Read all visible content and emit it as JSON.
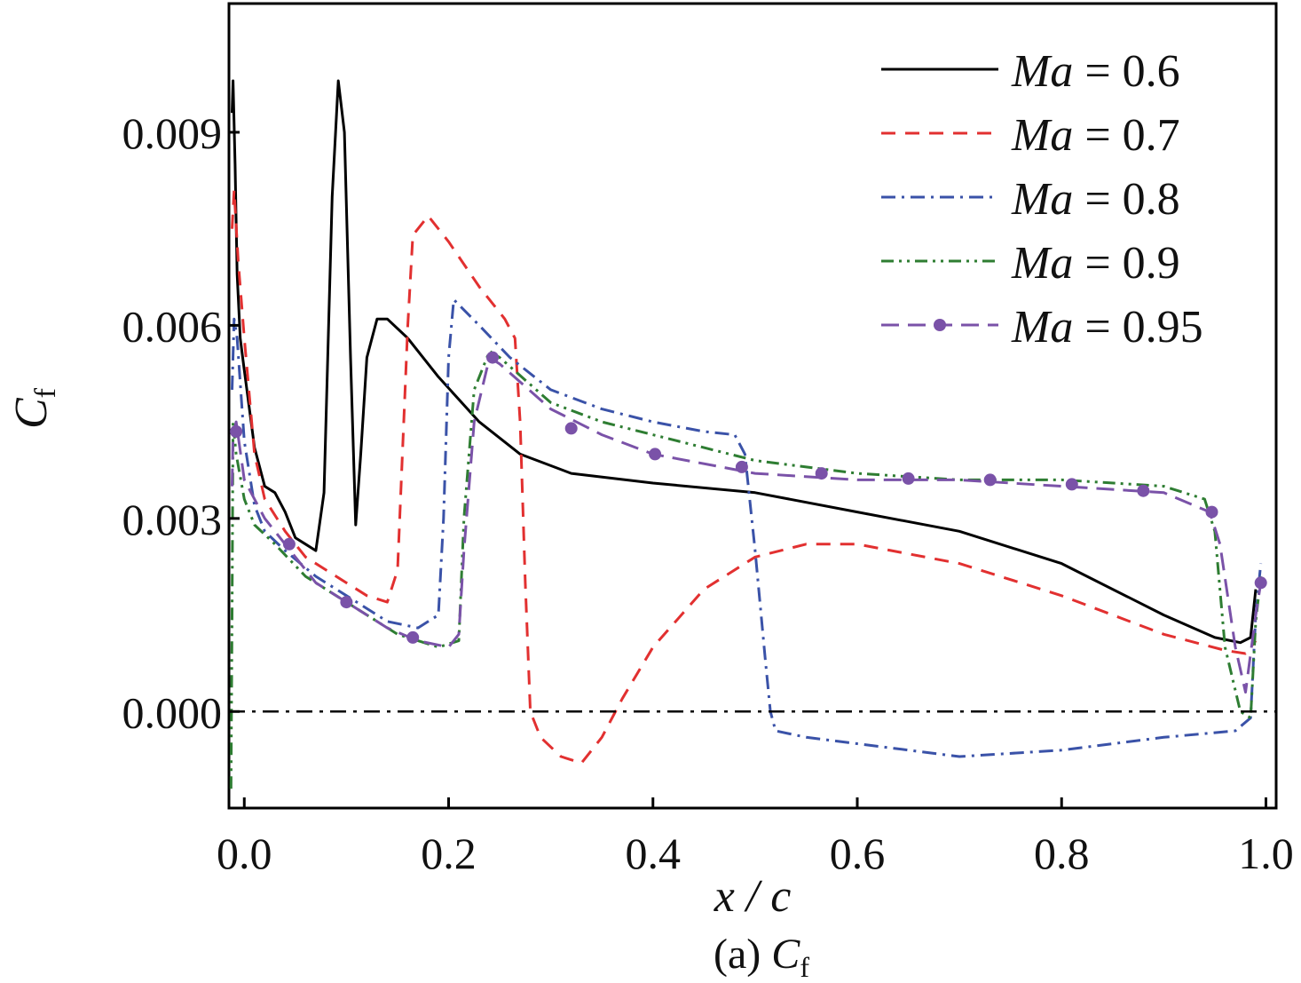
{
  "chart_data": {
    "type": "line",
    "caption": {
      "prefix": "(a) ",
      "symbol": "C",
      "sub": "f"
    },
    "xlabel": "x / c",
    "ylabel": {
      "symbol": "C",
      "sub": "f"
    },
    "xlim": [
      -0.015,
      1.01
    ],
    "ylim": [
      -0.0015,
      0.011
    ],
    "x_ticks": [
      0.0,
      0.2,
      0.4,
      0.6,
      0.8,
      1.0
    ],
    "x_tick_labels": [
      "0.0",
      "0.2",
      "0.4",
      "0.6",
      "0.8",
      "1.0"
    ],
    "y_ticks": [
      0.0,
      0.003,
      0.006,
      0.009
    ],
    "y_tick_labels": [
      "0.000",
      "0.003",
      "0.006",
      "0.009"
    ],
    "grid": false,
    "legend_position": "top-right",
    "reference_line": {
      "y": 0.0,
      "style": "dash-dot",
      "color": "#000000"
    },
    "series": [
      {
        "name": "0.6",
        "label_prefix": "Ma",
        "label_eq": " = ",
        "color": "#000000",
        "style": "solid",
        "marker": false,
        "points": [
          [
            -0.012,
            0.0093
          ],
          [
            -0.011,
            0.0098
          ],
          [
            -0.009,
            0.0085
          ],
          [
            -0.007,
            0.0068
          ],
          [
            -0.004,
            0.0058
          ],
          [
            0.0,
            0.0053
          ],
          [
            0.01,
            0.0041
          ],
          [
            0.02,
            0.0035
          ],
          [
            0.03,
            0.0034
          ],
          [
            0.04,
            0.0031
          ],
          [
            0.05,
            0.0027
          ],
          [
            0.06,
            0.0026
          ],
          [
            0.07,
            0.0025
          ],
          [
            0.078,
            0.0034
          ],
          [
            0.086,
            0.008
          ],
          [
            0.092,
            0.0098
          ],
          [
            0.098,
            0.009
          ],
          [
            0.104,
            0.0055
          ],
          [
            0.109,
            0.0029
          ],
          [
            0.114,
            0.004
          ],
          [
            0.12,
            0.0055
          ],
          [
            0.13,
            0.0061
          ],
          [
            0.14,
            0.0061
          ],
          [
            0.16,
            0.0058
          ],
          [
            0.19,
            0.0052
          ],
          [
            0.23,
            0.0045
          ],
          [
            0.27,
            0.004
          ],
          [
            0.32,
            0.0037
          ],
          [
            0.4,
            0.00355
          ],
          [
            0.5,
            0.0034
          ],
          [
            0.6,
            0.0031
          ],
          [
            0.7,
            0.0028
          ],
          [
            0.8,
            0.0023
          ],
          [
            0.9,
            0.0015
          ],
          [
            0.95,
            0.00115
          ],
          [
            0.975,
            0.00107
          ],
          [
            0.985,
            0.00115
          ],
          [
            0.99,
            0.0019
          ]
        ]
      },
      {
        "name": "0.7",
        "label_prefix": "Ma",
        "label_eq": " = ",
        "color": "#e23030",
        "style": "dashed",
        "marker": false,
        "points": [
          [
            -0.012,
            0.0075
          ],
          [
            -0.01,
            0.0081
          ],
          [
            -0.006,
            0.007
          ],
          [
            0.0,
            0.0058
          ],
          [
            0.01,
            0.004
          ],
          [
            0.02,
            0.0033
          ],
          [
            0.04,
            0.0028
          ],
          [
            0.06,
            0.0024
          ],
          [
            0.09,
            0.0021
          ],
          [
            0.12,
            0.0018
          ],
          [
            0.14,
            0.0017
          ],
          [
            0.15,
            0.0022
          ],
          [
            0.16,
            0.006
          ],
          [
            0.165,
            0.0074
          ],
          [
            0.18,
            0.0077
          ],
          [
            0.2,
            0.0073
          ],
          [
            0.23,
            0.0066
          ],
          [
            0.255,
            0.0061
          ],
          [
            0.265,
            0.0058
          ],
          [
            0.27,
            0.0045
          ],
          [
            0.275,
            0.002
          ],
          [
            0.28,
            0.0
          ],
          [
            0.29,
            -0.0004
          ],
          [
            0.31,
            -0.0007
          ],
          [
            0.33,
            -0.0008
          ],
          [
            0.35,
            -0.0004
          ],
          [
            0.37,
            0.0002
          ],
          [
            0.4,
            0.001
          ],
          [
            0.45,
            0.0019
          ],
          [
            0.5,
            0.0024
          ],
          [
            0.55,
            0.0026
          ],
          [
            0.6,
            0.0026
          ],
          [
            0.7,
            0.0023
          ],
          [
            0.8,
            0.0018
          ],
          [
            0.9,
            0.0012
          ],
          [
            0.96,
            0.00095
          ],
          [
            0.98,
            0.0009
          ],
          [
            0.99,
            0.0011
          ]
        ]
      },
      {
        "name": "0.8",
        "label_prefix": "Ma",
        "label_eq": " = ",
        "color": "#3a52a8",
        "style": "dashdot",
        "marker": false,
        "points": [
          [
            -0.012,
            0.005
          ],
          [
            -0.01,
            0.0061
          ],
          [
            -0.007,
            0.0058
          ],
          [
            0.0,
            0.0042
          ],
          [
            0.01,
            0.0032
          ],
          [
            0.02,
            0.0028
          ],
          [
            0.04,
            0.0025
          ],
          [
            0.07,
            0.0021
          ],
          [
            0.1,
            0.0018
          ],
          [
            0.14,
            0.0014
          ],
          [
            0.17,
            0.0013
          ],
          [
            0.19,
            0.0015
          ],
          [
            0.195,
            0.003
          ],
          [
            0.2,
            0.0055
          ],
          [
            0.205,
            0.0064
          ],
          [
            0.23,
            0.006
          ],
          [
            0.26,
            0.0055
          ],
          [
            0.3,
            0.005
          ],
          [
            0.35,
            0.0047
          ],
          [
            0.4,
            0.0045
          ],
          [
            0.45,
            0.00435
          ],
          [
            0.48,
            0.0043
          ],
          [
            0.49,
            0.004
          ],
          [
            0.5,
            0.0025
          ],
          [
            0.51,
            0.0008
          ],
          [
            0.515,
            0.0
          ],
          [
            0.52,
            -0.0003
          ],
          [
            0.55,
            -0.0004
          ],
          [
            0.6,
            -0.0005
          ],
          [
            0.7,
            -0.0007
          ],
          [
            0.8,
            -0.0006
          ],
          [
            0.9,
            -0.0004
          ],
          [
            0.97,
            -0.0003
          ],
          [
            0.985,
            -0.0001
          ],
          [
            0.99,
            0.0015
          ],
          [
            0.995,
            0.0023
          ]
        ]
      },
      {
        "name": "0.9",
        "label_prefix": "Ma",
        "label_eq": " = ",
        "color": "#2e7d32",
        "style": "dashdotdot",
        "marker": false,
        "points": [
          [
            -0.013,
            -0.0012
          ],
          [
            -0.012,
            0.0015
          ],
          [
            -0.011,
            0.0045
          ],
          [
            -0.008,
            0.004
          ],
          [
            0.0,
            0.0033
          ],
          [
            0.01,
            0.0029
          ],
          [
            0.03,
            0.0026
          ],
          [
            0.06,
            0.0021
          ],
          [
            0.1,
            0.0017
          ],
          [
            0.15,
            0.0012
          ],
          [
            0.19,
            0.001
          ],
          [
            0.21,
            0.0011
          ],
          [
            0.215,
            0.003
          ],
          [
            0.225,
            0.005
          ],
          [
            0.24,
            0.0056
          ],
          [
            0.25,
            0.0055
          ],
          [
            0.3,
            0.0048
          ],
          [
            0.35,
            0.0045
          ],
          [
            0.45,
            0.0041
          ],
          [
            0.5,
            0.0039
          ],
          [
            0.6,
            0.0037
          ],
          [
            0.7,
            0.0036
          ],
          [
            0.8,
            0.0036
          ],
          [
            0.9,
            0.0035
          ],
          [
            0.94,
            0.0033
          ],
          [
            0.95,
            0.0028
          ],
          [
            0.96,
            0.001
          ],
          [
            0.975,
            0.0
          ],
          [
            0.985,
            -0.0001
          ],
          [
            0.99,
            0.0014
          ],
          [
            0.995,
            0.0021
          ]
        ]
      },
      {
        "name": "0.95",
        "label_prefix": "Ma",
        "label_eq": " = ",
        "color": "#7a52a8",
        "style": "longdash",
        "marker": true,
        "points": [
          [
            -0.012,
            0.0035
          ],
          [
            -0.011,
            0.0043
          ],
          [
            -0.008,
            0.0045
          ],
          [
            0.0,
            0.0036
          ],
          [
            0.02,
            0.003
          ],
          [
            0.04,
            0.0026
          ],
          [
            0.07,
            0.002
          ],
          [
            0.1,
            0.0017
          ],
          [
            0.14,
            0.0013
          ],
          [
            0.17,
            0.0011
          ],
          [
            0.2,
            0.001
          ],
          [
            0.21,
            0.0012
          ],
          [
            0.215,
            0.0025
          ],
          [
            0.225,
            0.0045
          ],
          [
            0.24,
            0.0055
          ],
          [
            0.25,
            0.0054
          ],
          [
            0.3,
            0.0047
          ],
          [
            0.35,
            0.0043
          ],
          [
            0.4,
            0.004
          ],
          [
            0.5,
            0.0037
          ],
          [
            0.6,
            0.0036
          ],
          [
            0.7,
            0.0036
          ],
          [
            0.8,
            0.0035
          ],
          [
            0.9,
            0.0034
          ],
          [
            0.945,
            0.0031
          ],
          [
            0.955,
            0.0026
          ],
          [
            0.97,
            0.001
          ],
          [
            0.98,
            0.0003
          ],
          [
            0.99,
            0.0015
          ],
          [
            0.995,
            0.002
          ]
        ],
        "marker_points": [
          [
            -0.008,
            0.00435
          ],
          [
            0.044,
            0.0026
          ],
          [
            0.1,
            0.0017
          ],
          [
            0.165,
            0.00115
          ],
          [
            0.243,
            0.0055
          ],
          [
            0.32,
            0.0044
          ],
          [
            0.402,
            0.004
          ],
          [
            0.487,
            0.0038
          ],
          [
            0.565,
            0.0037
          ],
          [
            0.65,
            0.00362
          ],
          [
            0.73,
            0.0036
          ],
          [
            0.81,
            0.00353
          ],
          [
            0.88,
            0.00343
          ],
          [
            0.947,
            0.0031
          ],
          [
            0.995,
            0.002
          ]
        ]
      }
    ]
  }
}
